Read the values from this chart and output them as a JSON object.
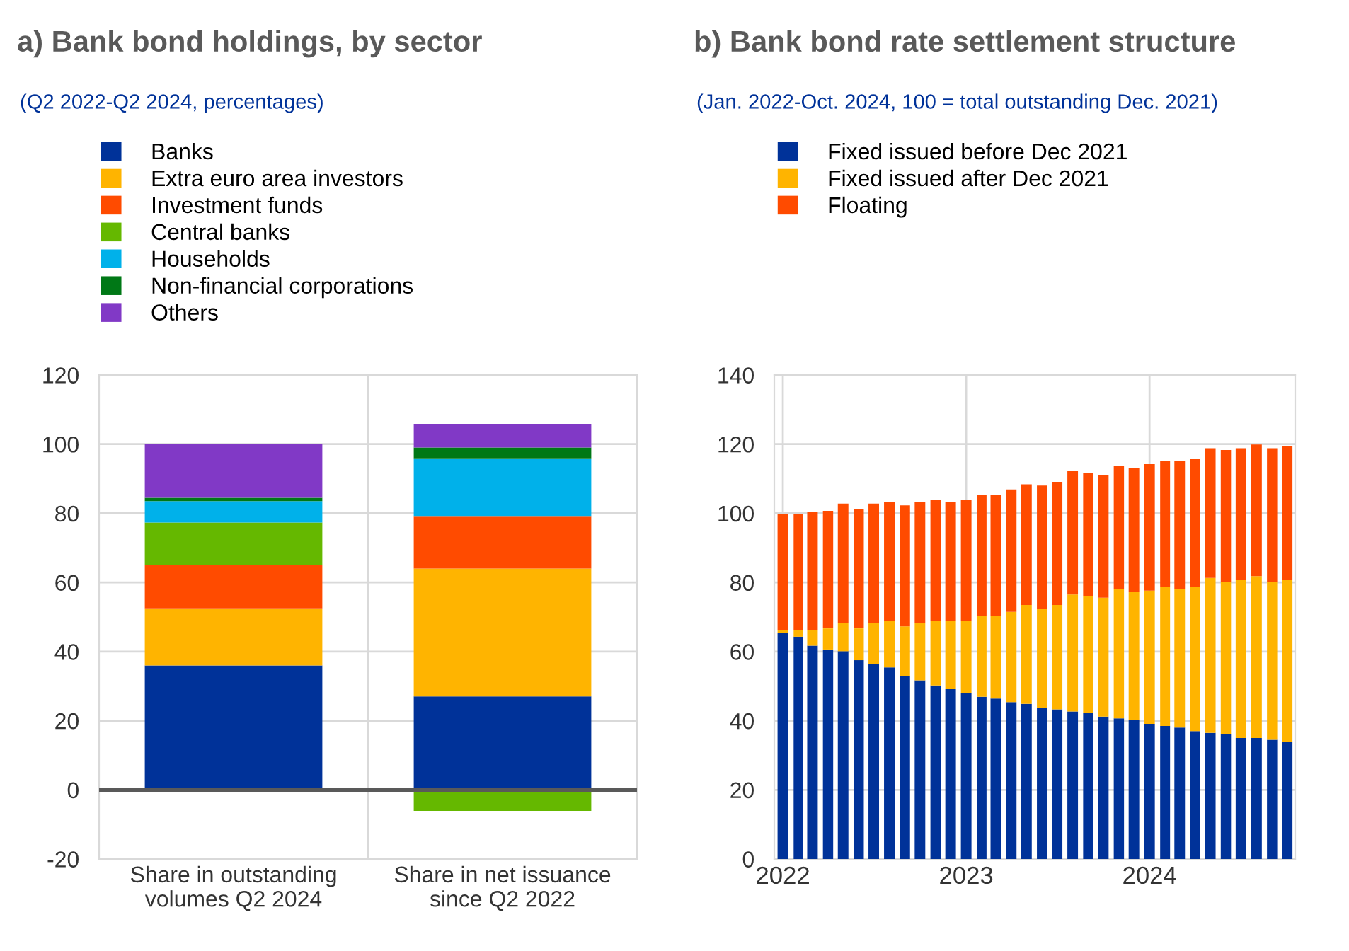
{
  "chart_data": [
    {
      "type": "bar",
      "title": "a) Bank bond holdings, by sector",
      "subtitle": "(Q2 2022-Q2 2024, percentages)",
      "stacked": true,
      "categories": [
        "Share in outstanding volumes Q2 2024",
        "Share in net issuance since Q2 2022"
      ],
      "series": [
        {
          "name": "Banks",
          "color": "#003299",
          "values": [
            36,
            27
          ]
        },
        {
          "name": "Extra euro area investors",
          "color": "#ffb400",
          "values": [
            16.5,
            37
          ]
        },
        {
          "name": "Investment funds",
          "color": "#ff4b00",
          "values": [
            12.5,
            15.2
          ]
        },
        {
          "name": "Central banks",
          "color": "#65b800",
          "values": [
            12.3,
            -6.1
          ]
        },
        {
          "name": "Households",
          "color": "#00b1ea",
          "values": [
            6.2,
            16.7
          ]
        },
        {
          "name": "Non-financial corporations",
          "color": "#007816",
          "values": [
            1,
            3.1
          ]
        },
        {
          "name": "Others",
          "color": "#8139c6",
          "values": [
            15.5,
            6.9
          ]
        }
      ],
      "ylim": [
        -20,
        120
      ],
      "yticks": [
        -20,
        0,
        20,
        40,
        60,
        80,
        100,
        120
      ],
      "grid": true,
      "legend": "top",
      "ref_lines": [
        {
          "axis": "y",
          "value": 0,
          "color": "#595959"
        }
      ]
    },
    {
      "type": "bar",
      "title": "b) Bank bond rate settlement structure",
      "subtitle": "(Jan. 2022-Oct. 2024, 100 = total outstanding Dec. 2021)",
      "stacked": true,
      "x": [
        "2022-01",
        "2022-02",
        "2022-03",
        "2022-04",
        "2022-05",
        "2022-06",
        "2022-07",
        "2022-08",
        "2022-09",
        "2022-10",
        "2022-11",
        "2022-12",
        "2023-01",
        "2023-02",
        "2023-03",
        "2023-04",
        "2023-05",
        "2023-06",
        "2023-07",
        "2023-08",
        "2023-09",
        "2023-10",
        "2023-11",
        "2023-12",
        "2024-01",
        "2024-02",
        "2024-03",
        "2024-04",
        "2024-05",
        "2024-06",
        "2024-07",
        "2024-08",
        "2024-09",
        "2024-10"
      ],
      "series": [
        {
          "name": "Fixed issued before Dec 2021",
          "color": "#003299",
          "values": [
            65.4,
            64.3,
            61.7,
            60.6,
            60.1,
            57.5,
            56.4,
            55.4,
            52.8,
            51.7,
            50.2,
            49.1,
            48.0,
            46.9,
            46.4,
            45.4,
            44.9,
            43.8,
            43.3,
            42.7,
            42.2,
            41.2,
            40.7,
            40.2,
            39.1,
            38.5,
            38.0,
            37.0,
            36.5,
            36.0,
            35.0,
            35.0,
            34.5,
            33.9
          ]
        },
        {
          "name": "Fixed issued after Dec 2021",
          "color": "#ffb400",
          "values": [
            0.8,
            1.9,
            4.5,
            6.1,
            8.1,
            9.2,
            11.8,
            13.4,
            14.5,
            16.5,
            18.6,
            19.7,
            20.8,
            23.5,
            24.0,
            26.1,
            28.6,
            28.6,
            30.2,
            33.8,
            33.9,
            34.4,
            37.4,
            37.0,
            38.5,
            40.2,
            40.1,
            41.7,
            44.8,
            44.2,
            45.7,
            46.8,
            45.7,
            46.8
          ]
        },
        {
          "name": "Floating",
          "color": "#ff4b00",
          "values": [
            33.5,
            33.5,
            34.1,
            34.0,
            34.6,
            34.5,
            34.6,
            34.4,
            35.0,
            35.0,
            35.0,
            34.4,
            35.0,
            35.0,
            35.0,
            35.4,
            34.9,
            35.6,
            35.6,
            35.7,
            35.6,
            35.5,
            35.6,
            35.9,
            36.6,
            36.5,
            37.1,
            37.0,
            37.5,
            38.1,
            38.1,
            38.1,
            38.6,
            38.7
          ]
        }
      ],
      "xlim": [
        "2021-12-15",
        "2024-10-17"
      ],
      "xticks": [
        "2022",
        "2023",
        "2024"
      ],
      "ylim": [
        0,
        140
      ],
      "yticks": [
        0,
        20,
        40,
        60,
        80,
        100,
        120,
        140
      ],
      "grid": true,
      "legend": "top"
    }
  ]
}
